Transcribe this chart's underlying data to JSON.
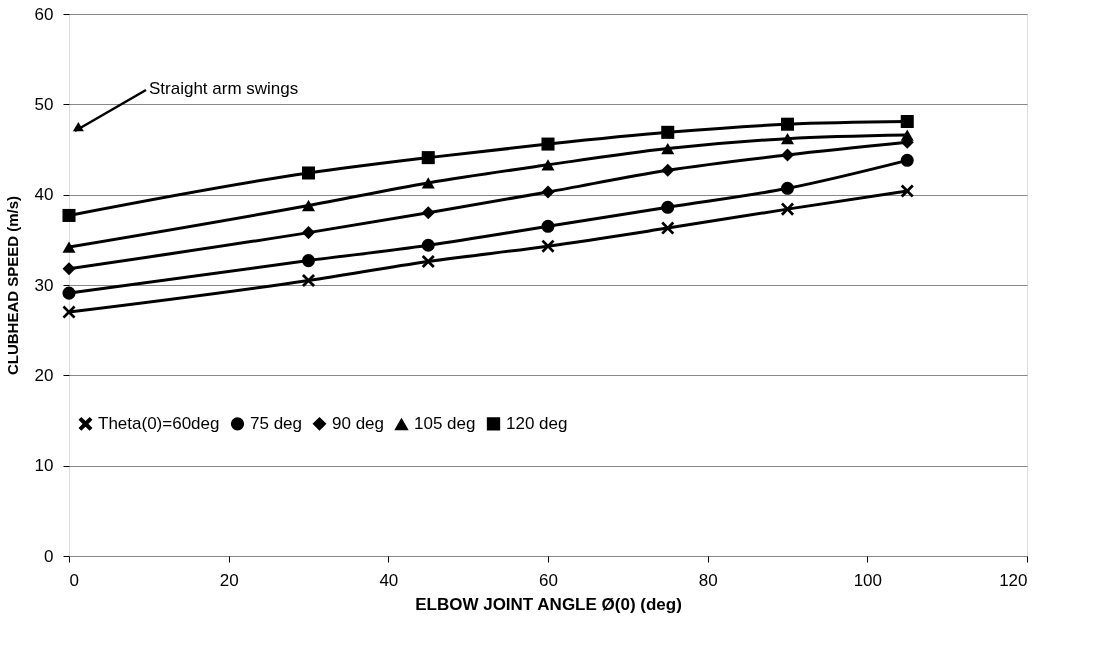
{
  "chart_data": {
    "type": "line",
    "xlabel": "ELBOW JOINT ANGLE Ø(0) (deg)",
    "ylabel": "CLUBHEAD SPEED (m/s)",
    "x": [
      0,
      30,
      45,
      60,
      75,
      90,
      105
    ],
    "series": [
      {
        "name": "Theta(0)=60deg",
        "color": "#000000",
        "marker": "cross",
        "values": [
          27.0,
          30.5,
          32.6,
          34.3,
          36.3,
          38.4,
          40.4
        ]
      },
      {
        "name": "75 deg",
        "color": "#000000",
        "marker": "circle",
        "values": [
          29.1,
          32.7,
          34.4,
          36.5,
          38.6,
          40.7,
          43.8
        ]
      },
      {
        "name": "90 deg",
        "color": "#000000",
        "marker": "diamond",
        "values": [
          31.8,
          35.8,
          38.0,
          40.3,
          42.7,
          44.4,
          45.8
        ]
      },
      {
        "name": "105 deg",
        "color": "#000000",
        "marker": "triangle",
        "values": [
          34.2,
          38.8,
          41.3,
          43.3,
          45.1,
          46.2,
          46.6
        ]
      },
      {
        "name": "120 deg",
        "color": "#000000",
        "marker": "square",
        "values": [
          37.7,
          42.4,
          44.1,
          45.6,
          46.9,
          47.8,
          48.1
        ]
      }
    ],
    "xlim": [
      0,
      120
    ],
    "xticks": [
      0,
      20,
      40,
      60,
      80,
      100,
      120
    ],
    "ylim": [
      0,
      60
    ],
    "yticks": [
      0,
      10,
      20,
      30,
      40,
      50,
      60
    ],
    "grid": "y",
    "legend": "bottom",
    "line_style": "solid",
    "annotations": [
      "Straight arm swings"
    ]
  }
}
